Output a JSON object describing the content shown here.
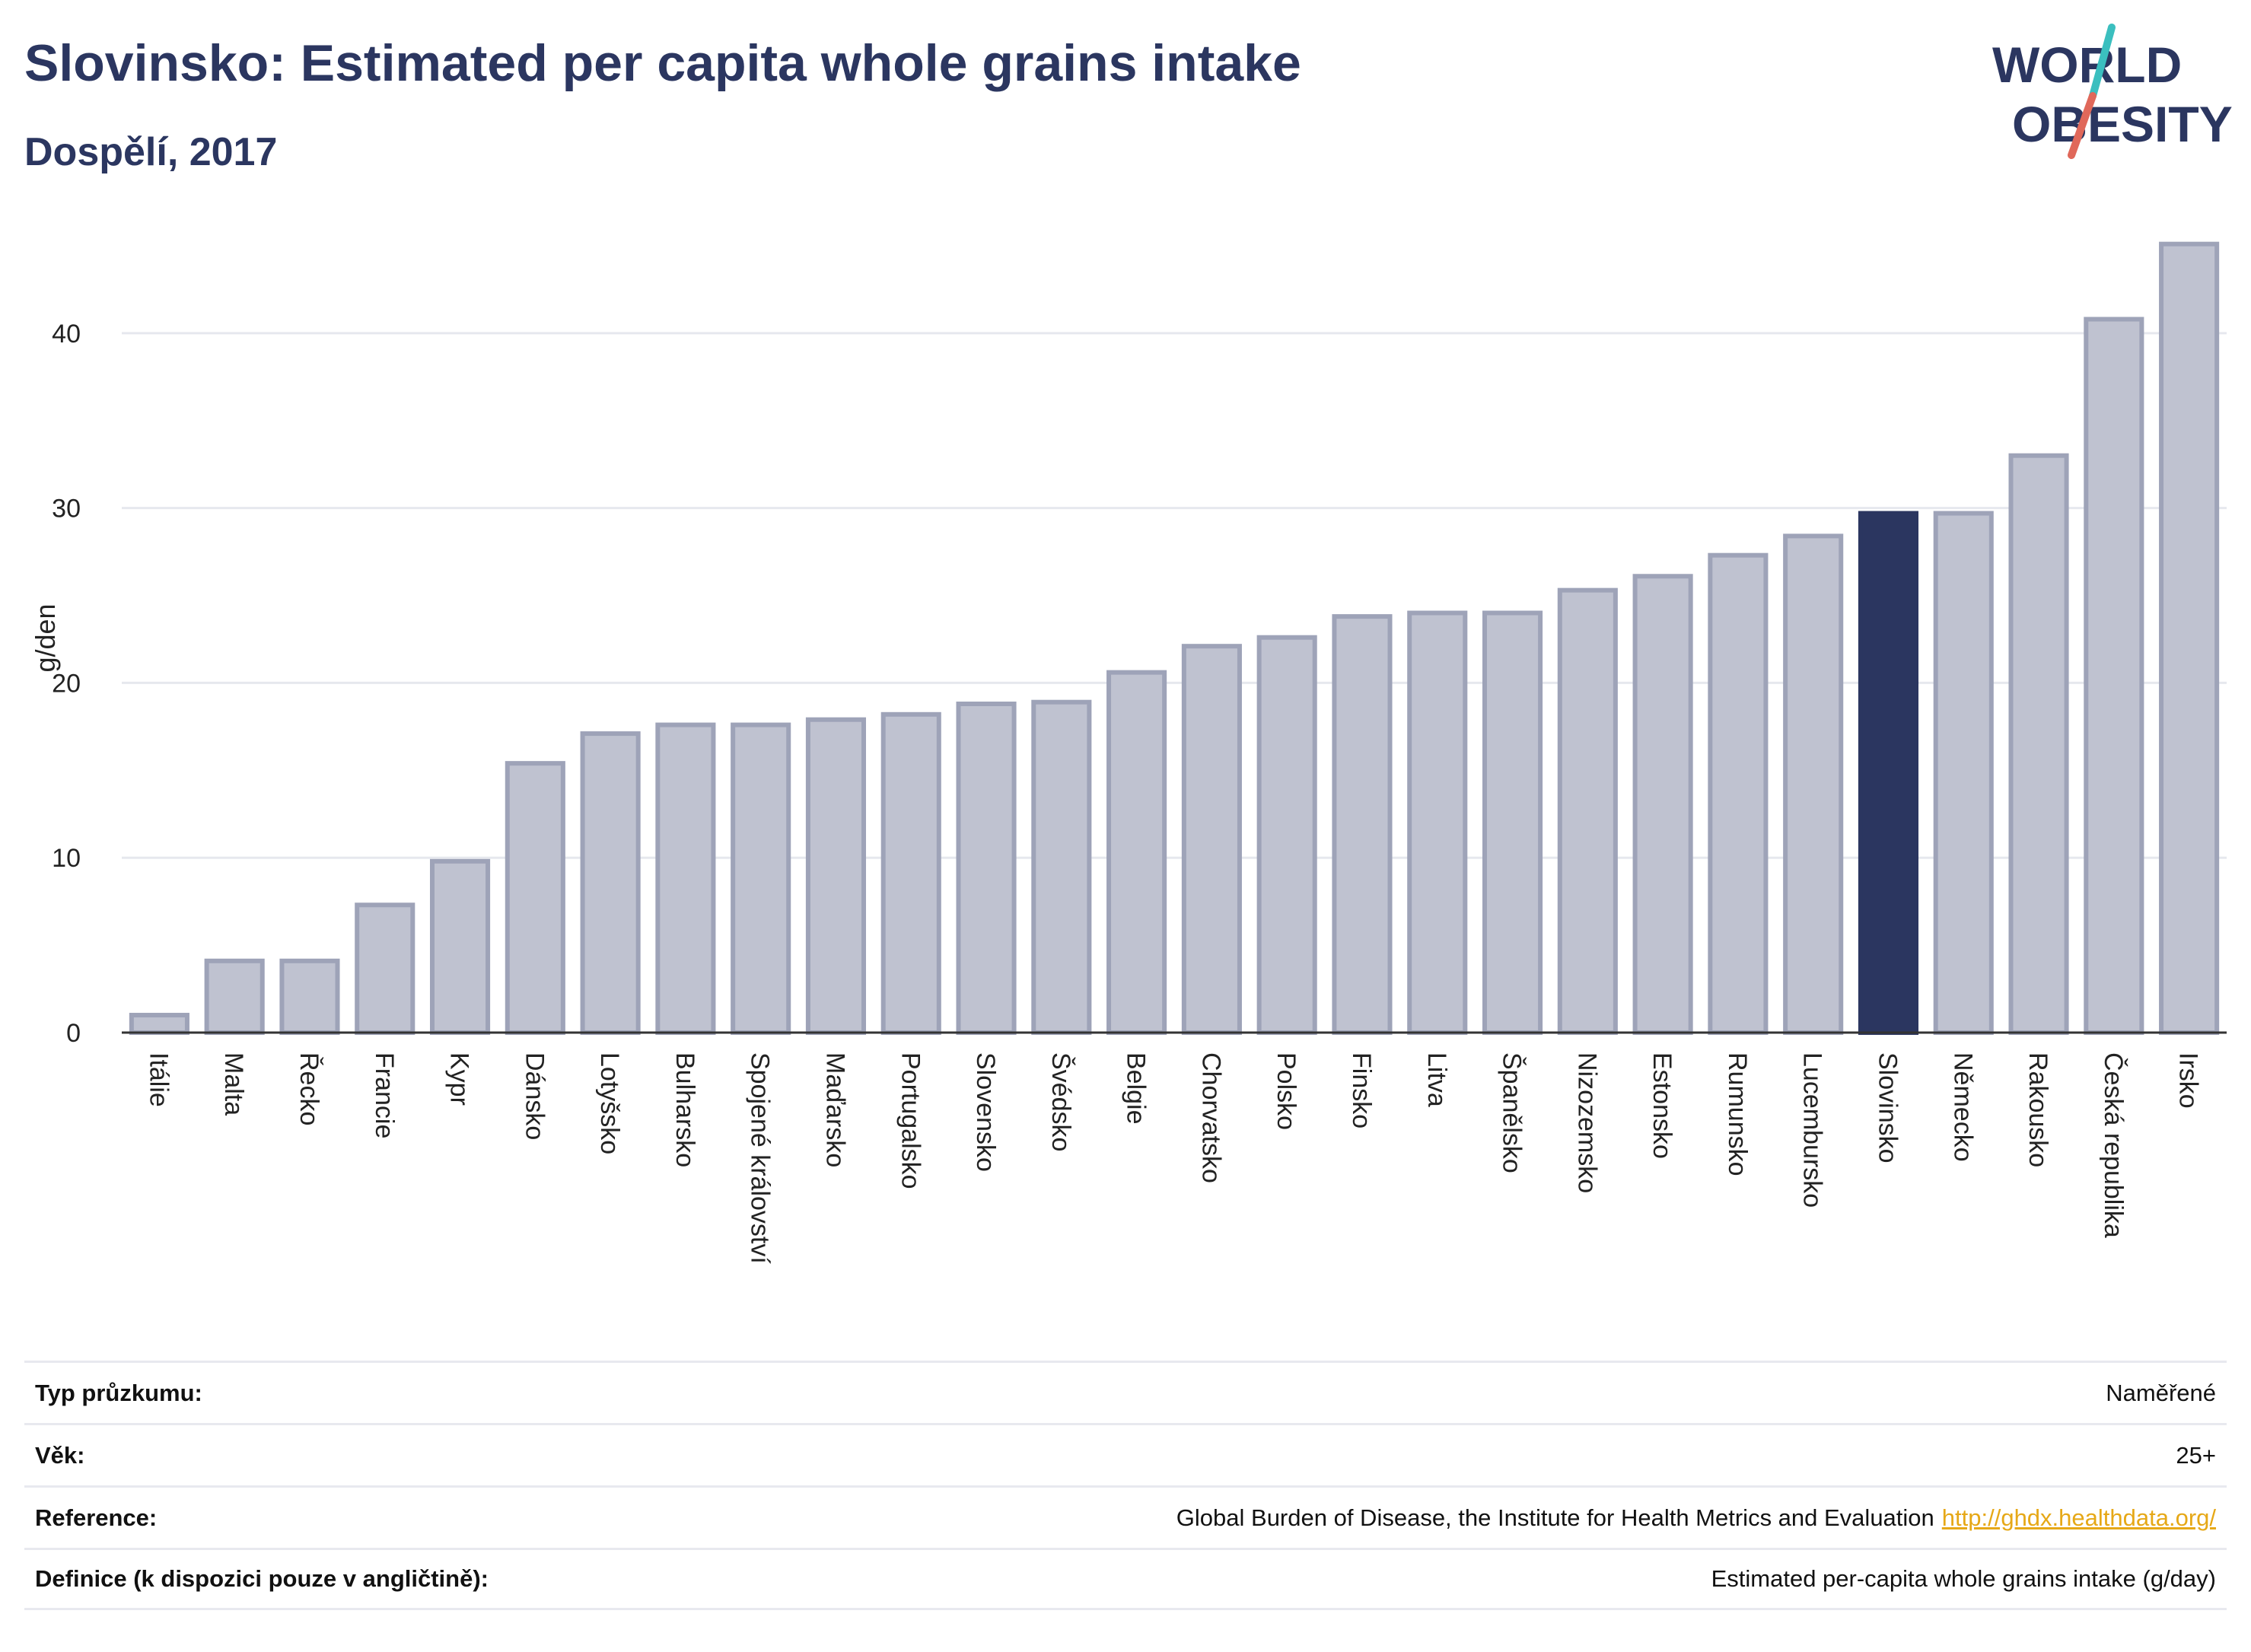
{
  "title": "Slovinsko: Estimated per capita whole grains intake",
  "subtitle": "Dospělí, 2017",
  "logo": {
    "line1": "WORLD",
    "line2": "OBESITY",
    "colors": [
      "#2b3660",
      "#3bbfbf",
      "#e0685a"
    ]
  },
  "colors": {
    "bar": "#bfc2d0",
    "bar_stroke": "#9ea3b8",
    "highlight": "#2b3660",
    "grid": "#e6e8ee",
    "axis": "#333333"
  },
  "chart_data": {
    "type": "bar",
    "title": "Slovinsko: Estimated per capita whole grains intake",
    "subtitle": "Dospělí, 2017",
    "xlabel": "",
    "ylabel": "g/den",
    "ylim": [
      0,
      46
    ],
    "yticks": [
      0,
      10,
      20,
      30,
      40
    ],
    "grid": true,
    "highlight": "Slovinsko",
    "categories": [
      "Itálie",
      "Malta",
      "Řecko",
      "Francie",
      "Kypr",
      "Dánsko",
      "Lotyšsko",
      "Bulharsko",
      "Spojené království",
      "Maďarsko",
      "Portugalsko",
      "Slovensko",
      "Švédsko",
      "Belgie",
      "Chorvatsko",
      "Polsko",
      "Finsko",
      "Litva",
      "Španělsko",
      "Nizozemsko",
      "Estonsko",
      "Rumunsko",
      "Lucembursko",
      "Slovinsko",
      "Německo",
      "Rakousko",
      "Česká republika",
      "Irsko"
    ],
    "values": [
      1.0,
      4.1,
      4.1,
      7.3,
      9.8,
      15.4,
      17.1,
      17.6,
      17.6,
      17.9,
      18.2,
      18.8,
      18.9,
      20.6,
      22.1,
      22.6,
      23.8,
      24.0,
      24.0,
      25.3,
      26.1,
      27.3,
      28.4,
      29.7,
      29.7,
      33.0,
      40.8,
      45.1
    ]
  },
  "info": [
    {
      "label": "Typ průzkumu:",
      "value": "Naměřené"
    },
    {
      "label": "Věk:",
      "value": "25+"
    },
    {
      "label": "Reference:",
      "value": "Global Burden of Disease, the Institute for Health Metrics and Evaluation",
      "link": "http://ghdx.healthdata.org/"
    },
    {
      "label": "Definice (k dispozici pouze v angličtině):",
      "value": "Estimated per-capita whole grains intake (g/day)"
    }
  ]
}
